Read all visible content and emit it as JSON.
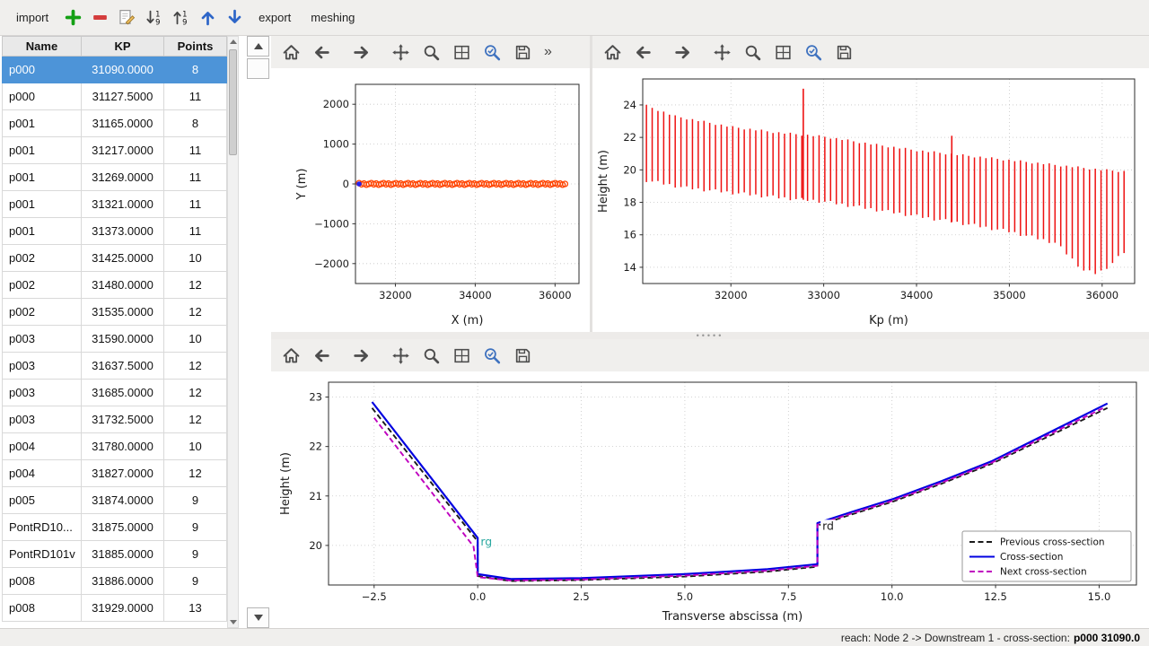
{
  "app_toolbar": {
    "import_label": "import",
    "export_label": "export",
    "meshing_label": "meshing",
    "icons": [
      {
        "name": "add"
      },
      {
        "name": "remove"
      },
      {
        "name": "edit"
      },
      {
        "name": "sort-desc"
      },
      {
        "name": "sort-asc"
      },
      {
        "name": "move-up"
      },
      {
        "name": "move-down"
      }
    ]
  },
  "table": {
    "headers": [
      "Name",
      "KP",
      "Points"
    ],
    "selected_index": 0,
    "rows": [
      [
        "p000",
        "31090.0000",
        "8"
      ],
      [
        "p000",
        "31127.5000",
        "11"
      ],
      [
        "p001",
        "31165.0000",
        "8"
      ],
      [
        "p001",
        "31217.0000",
        "11"
      ],
      [
        "p001",
        "31269.0000",
        "11"
      ],
      [
        "p001",
        "31321.0000",
        "11"
      ],
      [
        "p001",
        "31373.0000",
        "11"
      ],
      [
        "p002",
        "31425.0000",
        "10"
      ],
      [
        "p002",
        "31480.0000",
        "12"
      ],
      [
        "p002",
        "31535.0000",
        "12"
      ],
      [
        "p003",
        "31590.0000",
        "10"
      ],
      [
        "p003",
        "31637.5000",
        "12"
      ],
      [
        "p003",
        "31685.0000",
        "12"
      ],
      [
        "p003",
        "31732.5000",
        "12"
      ],
      [
        "p004",
        "31780.0000",
        "10"
      ],
      [
        "p004",
        "31827.0000",
        "12"
      ],
      [
        "p005",
        "31874.0000",
        "9"
      ],
      [
        "PontRD10...",
        "31875.0000",
        "9"
      ],
      [
        "PontRD101v",
        "31885.0000",
        "9"
      ],
      [
        "p008",
        "31886.0000",
        "9"
      ],
      [
        "p008",
        "31929.0000",
        "13"
      ]
    ]
  },
  "mpl_toolbar": {
    "buttons": [
      {
        "name": "home"
      },
      {
        "name": "back"
      },
      {
        "name": "forward",
        "gap": true
      },
      {
        "name": "pan",
        "gap": true
      },
      {
        "name": "zoom"
      },
      {
        "name": "subplots"
      },
      {
        "name": "customize"
      },
      {
        "name": "save"
      }
    ],
    "overflow": "»"
  },
  "chart_data": [
    {
      "name": "plan-view",
      "type": "scatter",
      "xlabel": "X (m)",
      "ylabel": "Y (m)",
      "xlim": [
        31000,
        36600
      ],
      "ylim": [
        -2500,
        2500
      ],
      "xticks": [
        32000,
        34000,
        36000
      ],
      "yticks": [
        -2000,
        -1000,
        0,
        1000,
        2000
      ],
      "x_start": 31090,
      "x_end": 36250,
      "n_points": 85,
      "y_value": 0,
      "marker_color": "#ff4400",
      "first_point_color": "#2222ee",
      "grid": true
    },
    {
      "name": "longitudinal-profile",
      "type": "bar-range",
      "xlabel": "Kp (m)",
      "ylabel": "Height (m)",
      "xlim": [
        31050,
        36350
      ],
      "ylim": [
        13,
        25.6
      ],
      "xticks": [
        32000,
        33000,
        34000,
        35000,
        36000
      ],
      "yticks": [
        14,
        16,
        18,
        20,
        22,
        24
      ],
      "bar_color": "#ee1111",
      "kp_start": 31090,
      "kp_end": 36250,
      "bar_spacing": 62,
      "top_envelope": [
        [
          31090,
          23.95
        ],
        [
          31400,
          23.3
        ],
        [
          32000,
          22.65
        ],
        [
          32500,
          22.3
        ],
        [
          33000,
          22.05
        ],
        [
          33500,
          21.6
        ],
        [
          34000,
          21.2
        ],
        [
          34500,
          20.9
        ],
        [
          35000,
          20.6
        ],
        [
          35500,
          20.3
        ],
        [
          36000,
          20.0
        ],
        [
          36250,
          19.9
        ]
      ],
      "bottom_envelope": [
        [
          31090,
          19.35
        ],
        [
          31500,
          18.9
        ],
        [
          32000,
          18.6
        ],
        [
          32500,
          18.3
        ],
        [
          33000,
          18.05
        ],
        [
          33500,
          17.6
        ],
        [
          34000,
          17.15
        ],
        [
          34500,
          16.7
        ],
        [
          35000,
          16.2
        ],
        [
          35500,
          15.5
        ],
        [
          35800,
          13.8
        ],
        [
          35950,
          13.6
        ],
        [
          36100,
          14.2
        ],
        [
          36250,
          15.0
        ]
      ],
      "spikes": [
        {
          "kp": 32780,
          "top": 25.0
        },
        {
          "kp": 34380,
          "top": 22.1
        }
      ],
      "grid": true
    },
    {
      "name": "cross-section",
      "type": "line",
      "xlabel": "Transverse abscissa (m)",
      "ylabel": "Height (m)",
      "xlim": [
        -3.6,
        15.9
      ],
      "ylim": [
        19.2,
        23.3
      ],
      "xticks": [
        -2.5,
        0,
        2.5,
        5,
        7.5,
        10,
        12.5,
        15
      ],
      "xtick_labels": [
        "−2.5",
        "0.0",
        "2.5",
        "5.0",
        "7.5",
        "10.0",
        "12.5",
        "15.0"
      ],
      "yticks": [
        20,
        21,
        22,
        23
      ],
      "series": [
        {
          "name": "Previous cross-section",
          "color": "#1a1a1a",
          "style": "dashed",
          "points": [
            [
              -2.55,
              22.78
            ],
            [
              0,
              20.08
            ],
            [
              0,
              19.38
            ],
            [
              0.8,
              19.28
            ],
            [
              2.5,
              19.3
            ],
            [
              5,
              19.37
            ],
            [
              7,
              19.47
            ],
            [
              8.2,
              19.57
            ],
            [
              8.2,
              20.4
            ],
            [
              9,
              20.62
            ],
            [
              10,
              20.88
            ],
            [
              11.2,
              21.25
            ],
            [
              12.4,
              21.65
            ],
            [
              15.2,
              22.78
            ]
          ]
        },
        {
          "name": "Cross-section",
          "color": "#0000e0",
          "style": "solid",
          "points": [
            [
              -2.55,
              22.9
            ],
            [
              0,
              20.15
            ],
            [
              0,
              19.42
            ],
            [
              0.8,
              19.32
            ],
            [
              2.5,
              19.34
            ],
            [
              5,
              19.42
            ],
            [
              7,
              19.52
            ],
            [
              8.2,
              19.62
            ],
            [
              8.2,
              20.45
            ],
            [
              9,
              20.67
            ],
            [
              10,
              20.93
            ],
            [
              11.2,
              21.3
            ],
            [
              12.4,
              21.7
            ],
            [
              15.2,
              22.87
            ]
          ]
        },
        {
          "name": "Next cross-section",
          "color": "#bf00bf",
          "style": "dashed",
          "points": [
            [
              -2.5,
              22.58
            ],
            [
              -0.1,
              19.98
            ],
            [
              0,
              19.36
            ],
            [
              0.8,
              19.29
            ],
            [
              2.5,
              19.31
            ],
            [
              5,
              19.39
            ],
            [
              7,
              19.49
            ],
            [
              8.2,
              19.59
            ],
            [
              8.2,
              20.42
            ],
            [
              9,
              20.64
            ],
            [
              10,
              20.9
            ],
            [
              11.2,
              21.27
            ],
            [
              12.4,
              21.67
            ],
            [
              15.15,
              22.8
            ]
          ]
        }
      ],
      "annotations": [
        {
          "text": "rg",
          "x": 0.07,
          "y": 20.0,
          "color": "#2aa8a0"
        },
        {
          "text": "rd",
          "x": 8.32,
          "y": 20.32,
          "color": "#1a1a1a"
        }
      ],
      "legend": {
        "position": "lower right",
        "entries": [
          "Previous cross-section",
          "Cross-section",
          "Next cross-section"
        ]
      },
      "grid": true
    }
  ],
  "status_bar": {
    "prefix": "reach: Node 2 -> Downstream 1 - cross-section:",
    "selection": "p000 31090.0"
  }
}
